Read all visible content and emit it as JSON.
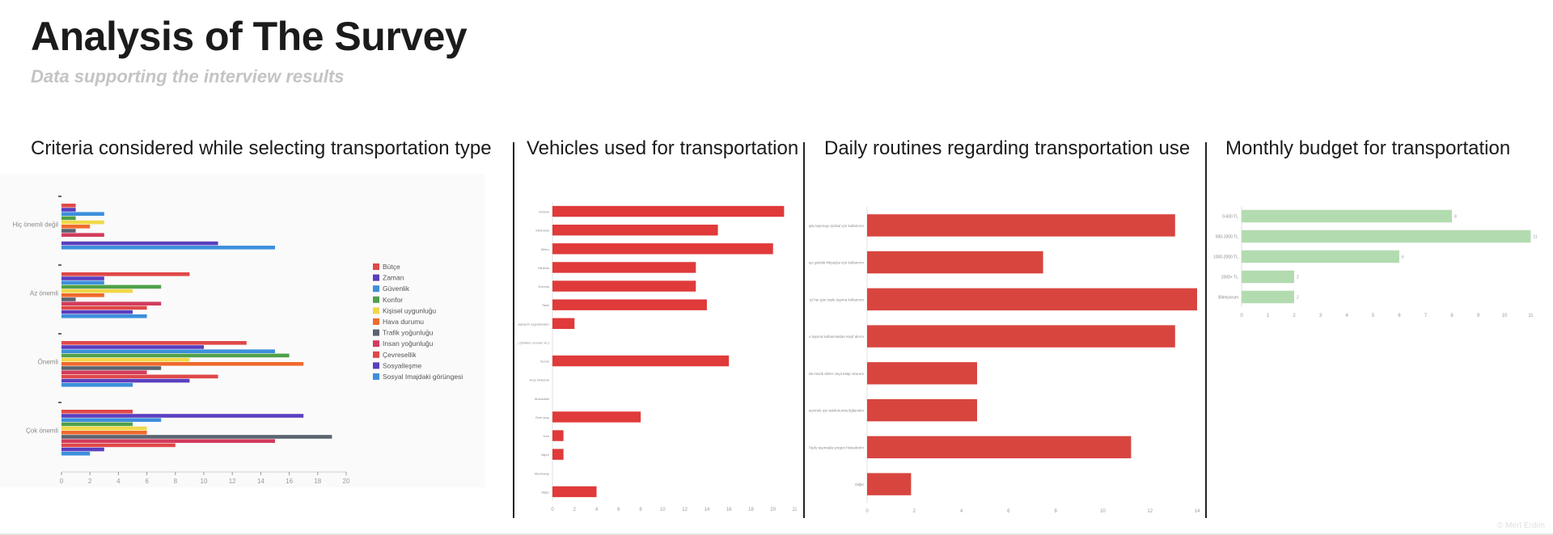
{
  "header": {
    "title": "Analysis of The Survey",
    "subtitle": "Data supporting the interview results"
  },
  "panels": {
    "criteria": {
      "title": "Criteria considered while selecting transportation type"
    },
    "vehicles": {
      "title": "Vehicles used for transportation"
    },
    "routines": {
      "title": "Daily routines regarding transportation use"
    },
    "budget": {
      "title": "Monthly budget for transportation"
    }
  },
  "footer": {
    "credit": "© Mert Erdim"
  },
  "chart_data": [
    {
      "type": "bar",
      "orientation": "horizontal",
      "title": "Criteria considered while selecting transportation type",
      "categories": [
        "Hiç önemli değil",
        "Az önemli",
        "Önemli",
        "Çok önemli"
      ],
      "series": [
        {
          "name": "Bütçe",
          "color": "#e04848",
          "values": [
            1,
            9,
            13,
            5
          ]
        },
        {
          "name": "Zaman",
          "color": "#5a3fbf",
          "values": [
            1,
            3,
            10,
            17
          ]
        },
        {
          "name": "Güvenlik",
          "color": "#3d8fdc",
          "values": [
            3,
            3,
            15,
            7
          ]
        },
        {
          "name": "Konfor",
          "color": "#4fa04a",
          "values": [
            1,
            7,
            16,
            5
          ]
        },
        {
          "name": "Kişisel uygunluğu",
          "color": "#f0d848",
          "values": [
            3,
            5,
            9,
            6
          ]
        },
        {
          "name": "Hava durumu",
          "color": "#ef6a2c",
          "values": [
            2,
            3,
            17,
            6
          ]
        },
        {
          "name": "Trafik yoğunluğu",
          "color": "#5a6470",
          "values": [
            1,
            1,
            7,
            19
          ]
        },
        {
          "name": "Insan yoğunluğu",
          "color": "#d23c5c",
          "values": [
            3,
            7,
            6,
            15
          ]
        },
        {
          "name": "Çevresellik",
          "color": "#e04848",
          "values": [
            0,
            6,
            11,
            8
          ]
        },
        {
          "name": "Sosyalleşme",
          "color": "#5a3fbf",
          "values": [
            11,
            5,
            9,
            3
          ]
        },
        {
          "name": "Sosyal Imajdaki görüngesi",
          "color": "#3d8fdc",
          "values": [
            15,
            6,
            5,
            2
          ]
        }
      ],
      "xlim": [
        0,
        20
      ],
      "xticks": [
        "0",
        "2",
        "4",
        "6",
        "8",
        "10",
        "12",
        "14",
        "16",
        "18",
        "20"
      ],
      "legend": "right"
    },
    {
      "type": "bar",
      "orientation": "horizontal",
      "title": "Vehicles used for transportation",
      "categories": [
        "Otobüs",
        "Metrobüs",
        "Metro",
        "Minibüs",
        "Dolmuş",
        "Taksi",
        "Araç paylaşım uygulamaları",
        "Kişisel araç (bisiklet, scooter vb.)",
        "Servis",
        "Araç kiralama",
        "Motosiklet",
        "Özel araç",
        "Tren",
        "Vapur",
        "Marmaray",
        "Diğer"
      ],
      "values": [
        21,
        15,
        20,
        13,
        13,
        14,
        2,
        0,
        16,
        0,
        0,
        8,
        1,
        1,
        0,
        4
      ],
      "xlim": [
        0,
        22
      ],
      "xticks": [
        "0",
        "2",
        "4",
        "6",
        "8",
        "10",
        "12",
        "14",
        "16",
        "18",
        "20",
        "22"
      ],
      "color": "#e03a3a"
    },
    {
      "type": "bar",
      "orientation": "horizontal",
      "title": "Daily routines regarding transportation use",
      "categories": [
        "Toplu taşımayı iş/okul için kullanırım",
        "Toplu taşımayı günlük ihtiyaçlar için kullanırım",
        "Hafta içi her gün toplu taşıma kullanırım",
        "Toplu taşıma kullanmaktan keyif alırım",
        "Toplu taşımada müzik dinler veya kitap okurum",
        "Toplu taşımada zaman geçirmek için telefonumla ilgilenirim",
        "Toplu taşımada yorgun hissederim",
        "Diğer"
      ],
      "values": [
        14,
        8,
        15,
        14,
        5,
        5,
        12,
        2
      ],
      "xlim": [
        0,
        15
      ],
      "xticks": [
        "0",
        "2",
        "4",
        "6",
        "8",
        "10",
        "12",
        "14"
      ],
      "color": "#d8453f"
    },
    {
      "type": "bar",
      "orientation": "horizontal",
      "title": "Monthly budget for transportation",
      "categories": [
        "0-500 TL",
        "500-1000 TL",
        "1000-2000 TL",
        "2000+ TL",
        "Bilmiyorum"
      ],
      "values": [
        8,
        11,
        6,
        2,
        2
      ],
      "xlim": [
        0,
        12
      ],
      "xticks": [
        "0",
        "1",
        "2",
        "3",
        "4",
        "5",
        "6",
        "7",
        "8",
        "9",
        "10",
        "11",
        "12"
      ],
      "color": "#b3dbb0"
    }
  ]
}
